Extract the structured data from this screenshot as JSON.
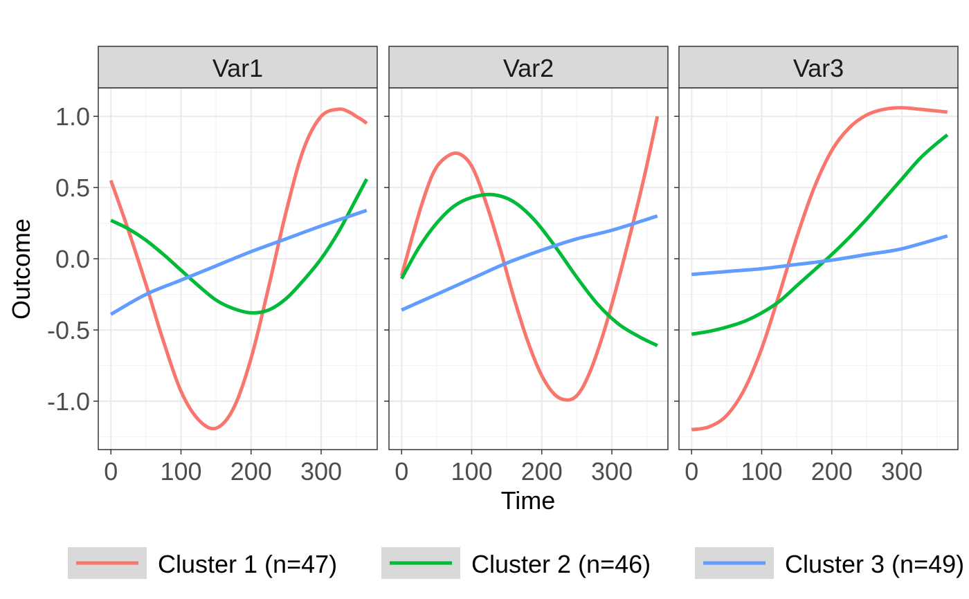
{
  "chart_data": {
    "type": "line",
    "xlabel": "Time",
    "ylabel": "Outcome",
    "xlim": [
      -18,
      380
    ],
    "ylim": [
      -1.34,
      1.2
    ],
    "x_ticks": [
      0,
      100,
      200,
      300
    ],
    "x_tick_labels": [
      "0",
      "100",
      "200",
      "300"
    ],
    "y_ticks": [
      1.0,
      0.5,
      0.0,
      -0.5,
      -1.0
    ],
    "y_tick_labels": [
      "1.0",
      "0.5",
      "0.0",
      "-0.5",
      "-1.0"
    ],
    "grid": true,
    "legend_position": "bottom",
    "colors": {
      "cluster1": "#F8766D",
      "cluster2": "#00BA38",
      "cluster3": "#619CFF",
      "strip_bg": "#D9D9D9",
      "panel_border": "#333333",
      "grid_major": "#EBEBEB",
      "grid_minor": "#F3F3F3"
    },
    "legend": [
      {
        "key": "cluster1",
        "label": "Cluster 1 (n=47)"
      },
      {
        "key": "cluster2",
        "label": "Cluster 2 (n=46)"
      },
      {
        "key": "cluster3",
        "label": "Cluster 3 (n=49)"
      }
    ],
    "panels": [
      {
        "title": "Var1",
        "series": [
          {
            "key": "cluster1",
            "x": [
              0,
              25,
              50,
              75,
              100,
              125,
              150,
              175,
              200,
              225,
              250,
              275,
              300,
              325,
              340,
              350,
              360,
              365
            ],
            "y": [
              0.55,
              0.2,
              -0.18,
              -0.58,
              -0.93,
              -1.13,
              -1.19,
              -1.05,
              -0.7,
              -0.2,
              0.33,
              0.77,
              1.0,
              1.05,
              1.03,
              1.0,
              0.97,
              0.95
            ]
          },
          {
            "key": "cluster2",
            "x": [
              0,
              25,
              50,
              75,
              100,
              125,
              150,
              175,
              200,
              225,
              250,
              275,
              300,
              325,
              350,
              365
            ],
            "y": [
              0.27,
              0.21,
              0.13,
              0.03,
              -0.08,
              -0.19,
              -0.29,
              -0.35,
              -0.38,
              -0.36,
              -0.28,
              -0.15,
              0.0,
              0.19,
              0.42,
              0.56
            ]
          },
          {
            "key": "cluster3",
            "x": [
              0,
              50,
              100,
              150,
              200,
              250,
              300,
              365
            ],
            "y": [
              -0.39,
              -0.25,
              -0.15,
              -0.05,
              0.05,
              0.14,
              0.23,
              0.34
            ]
          }
        ]
      },
      {
        "title": "Var2",
        "series": [
          {
            "key": "cluster1",
            "x": [
              0,
              15,
              30,
              45,
              60,
              80,
              100,
              120,
              140,
              160,
              180,
              200,
              220,
              240,
              255,
              270,
              285,
              300,
              320,
              345,
              365
            ],
            "y": [
              -0.12,
              0.15,
              0.4,
              0.6,
              0.7,
              0.74,
              0.65,
              0.4,
              0.08,
              -0.27,
              -0.58,
              -0.82,
              -0.96,
              -0.99,
              -0.93,
              -0.78,
              -0.57,
              -0.32,
              0.05,
              0.55,
              1.0
            ]
          },
          {
            "key": "cluster2",
            "x": [
              0,
              25,
              50,
              75,
              100,
              130,
              160,
              190,
              220,
              250,
              280,
              310,
              340,
              365
            ],
            "y": [
              -0.14,
              0.08,
              0.25,
              0.37,
              0.43,
              0.45,
              0.4,
              0.27,
              0.08,
              -0.13,
              -0.32,
              -0.46,
              -0.55,
              -0.61
            ]
          },
          {
            "key": "cluster3",
            "x": [
              0,
              50,
              100,
              150,
              200,
              250,
              300,
              365
            ],
            "y": [
              -0.36,
              -0.25,
              -0.14,
              -0.03,
              0.06,
              0.14,
              0.2,
              0.3
            ]
          }
        ]
      },
      {
        "title": "Var3",
        "series": [
          {
            "key": "cluster1",
            "x": [
              0,
              25,
              50,
              75,
              100,
              125,
              150,
              175,
              200,
              225,
              250,
              275,
              300,
              325,
              345,
              365
            ],
            "y": [
              -1.2,
              -1.18,
              -1.1,
              -0.92,
              -0.63,
              -0.25,
              0.15,
              0.5,
              0.76,
              0.92,
              1.01,
              1.05,
              1.06,
              1.05,
              1.04,
              1.03
            ]
          },
          {
            "key": "cluster2",
            "x": [
              0,
              25,
              50,
              75,
              100,
              125,
              150,
              175,
              200,
              225,
              250,
              275,
              300,
              325,
              345,
              365
            ],
            "y": [
              -0.53,
              -0.51,
              -0.48,
              -0.44,
              -0.38,
              -0.3,
              -0.19,
              -0.08,
              0.03,
              0.15,
              0.28,
              0.42,
              0.56,
              0.7,
              0.79,
              0.87
            ]
          },
          {
            "key": "cluster3",
            "x": [
              0,
              50,
              100,
              150,
              200,
              250,
              300,
              365
            ],
            "y": [
              -0.11,
              -0.09,
              -0.07,
              -0.04,
              -0.01,
              0.03,
              0.07,
              0.16
            ]
          }
        ]
      }
    ]
  }
}
